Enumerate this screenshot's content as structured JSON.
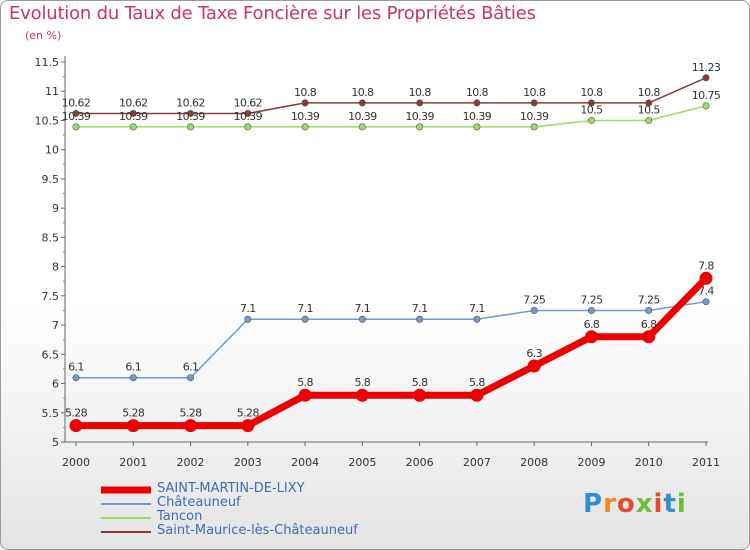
{
  "title": "Evolution du Taux de Taxe Foncière sur les Propriétés Bâties",
  "subtitle": "(en %)",
  "logo_text": "Proxiti",
  "chart_data": {
    "type": "line",
    "title": "Evolution du Taux de Taxe Foncière sur les Propriétés Bâties",
    "ylabel": "(en %)",
    "xlabel": "",
    "ylim": [
      5,
      11.5
    ],
    "yticks": [
      "5",
      "5.5",
      "6",
      "6.5",
      "7",
      "7.5",
      "8",
      "8.5",
      "9",
      "9.5",
      "10",
      "10.5",
      "11",
      "11.5"
    ],
    "categories": [
      "2000",
      "2001",
      "2002",
      "2003",
      "2004",
      "2005",
      "2006",
      "2007",
      "2008",
      "2009",
      "2010",
      "2011"
    ],
    "legend_position": "bottom-left",
    "series": [
      {
        "name": "Saint-Maurice-lès-Châteauneuf",
        "color": "#8b3a3a",
        "values": [
          10.62,
          10.62,
          10.62,
          10.62,
          10.8,
          10.8,
          10.8,
          10.8,
          10.8,
          10.8,
          10.8,
          11.23
        ],
        "labels": [
          "10.62",
          "10.62",
          "10.62",
          "10.62",
          "10.8",
          "10.8",
          "10.8",
          "10.8",
          "10.8",
          "10.8",
          "10.8",
          "11.23"
        ]
      },
      {
        "name": "Tancon",
        "color": "#99dd66",
        "values": [
          10.39,
          10.39,
          10.39,
          10.39,
          10.39,
          10.39,
          10.39,
          10.39,
          10.39,
          10.5,
          10.5,
          10.75
        ],
        "labels": [
          "10.39",
          "10.39",
          "10.39",
          "10.39",
          "10.39",
          "10.39",
          "10.39",
          "10.39",
          "10.39",
          "10.5",
          "10.5",
          "10.75"
        ]
      },
      {
        "name": "Châteauneuf",
        "color": "#6f9ccc",
        "values": [
          6.1,
          6.1,
          6.1,
          7.1,
          7.1,
          7.1,
          7.1,
          7.1,
          7.25,
          7.25,
          7.25,
          7.4
        ],
        "labels": [
          "6.1",
          "6.1",
          "6.1",
          "7.1",
          "7.1",
          "7.1",
          "7.1",
          "7.1",
          "7.25",
          "7.25",
          "7.25",
          "7.4"
        ]
      },
      {
        "name": "SAINT-MARTIN-DE-LIXY",
        "color": "#ee0000",
        "values": [
          5.28,
          5.28,
          5.28,
          5.28,
          5.8,
          5.8,
          5.8,
          5.8,
          6.3,
          6.8,
          6.8,
          7.8
        ],
        "labels": [
          "5.28",
          "5.28",
          "5.28",
          "5.28",
          "5.8",
          "5.8",
          "5.8",
          "5.8",
          "6.3",
          "6.8",
          "6.8",
          "7.8"
        ]
      }
    ],
    "legend": [
      {
        "name": "SAINT-MARTIN-DE-LIXY",
        "color": "#ee0000"
      },
      {
        "name": "Châteauneuf",
        "color": "#6f9ccc"
      },
      {
        "name": "Tancon",
        "color": "#99dd66"
      },
      {
        "name": "Saint-Maurice-lès-Châteauneuf",
        "color": "#8b3a3a"
      }
    ]
  }
}
